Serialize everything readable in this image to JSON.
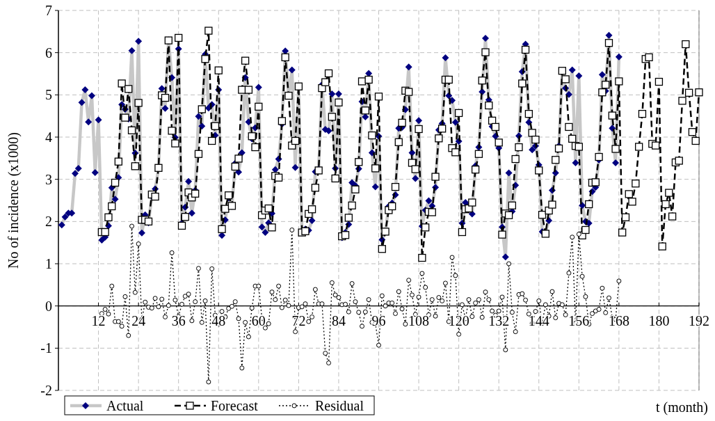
{
  "chart_data": {
    "type": "line",
    "ylabel": "No of incidence (x1000)",
    "xlabel": "t (month)",
    "xlim": [
      0,
      192
    ],
    "xticks": [
      12,
      24,
      36,
      48,
      60,
      72,
      84,
      96,
      108,
      120,
      132,
      144,
      156,
      168,
      180,
      192
    ],
    "ylim": [
      -2,
      7
    ],
    "yticks": [
      -2,
      -1,
      0,
      1,
      2,
      3,
      4,
      5,
      6,
      7
    ],
    "grid": true,
    "legend": "bottom left",
    "x": [
      1,
      2,
      3,
      4,
      5,
      6,
      7,
      8,
      9,
      10,
      11,
      12,
      13,
      14,
      15,
      16,
      17,
      18,
      19,
      20,
      21,
      22,
      23,
      24,
      25,
      26,
      27,
      28,
      29,
      30,
      31,
      32,
      33,
      34,
      35,
      36,
      37,
      38,
      39,
      40,
      41,
      42,
      43,
      44,
      45,
      46,
      47,
      48,
      49,
      50,
      51,
      52,
      53,
      54,
      55,
      56,
      57,
      58,
      59,
      60,
      61,
      62,
      63,
      64,
      65,
      66,
      67,
      68,
      69,
      70,
      71,
      72,
      73,
      74,
      75,
      76,
      77,
      78,
      79,
      80,
      81,
      82,
      83,
      84,
      85,
      86,
      87,
      88,
      89,
      90,
      91,
      92,
      93,
      94,
      95,
      96,
      97,
      98,
      99,
      100,
      101,
      102,
      103,
      104,
      105,
      106,
      107,
      108,
      109,
      110,
      111,
      112,
      113,
      114,
      115,
      116,
      117,
      118,
      119,
      120,
      121,
      122,
      123,
      124,
      125,
      126,
      127,
      128,
      129,
      130,
      131,
      132,
      133,
      134,
      135,
      136,
      137,
      138,
      139,
      140,
      141,
      142,
      143,
      144,
      145,
      146,
      147,
      148,
      149,
      150,
      151,
      152,
      153,
      154,
      155,
      156,
      157,
      158,
      159,
      160,
      161,
      162,
      163,
      164,
      165,
      166,
      167,
      168,
      169,
      170,
      171,
      172,
      173,
      174,
      175,
      176,
      177,
      178,
      179,
      180,
      181,
      182,
      183,
      184,
      185,
      186,
      187,
      188,
      189,
      190,
      191,
      192
    ],
    "series": [
      {
        "name": "Actual",
        "color": "#000080",
        "marker": "diamond",
        "line_style": "solid",
        "values": [
          1.92,
          2.11,
          2.2,
          2.2,
          3.14,
          3.26,
          4.82,
          5.12,
          4.36,
          4.98,
          3.16,
          4.41,
          1.56,
          1.63,
          1.9,
          2.8,
          2.53,
          3.04,
          4.77,
          4.66,
          4.43,
          6.05,
          3.62,
          6.27,
          1.73,
          2.16,
          1.97,
          2.6,
          2.77,
          3.25,
          5.15,
          4.68,
          6.3,
          5.41,
          3.99,
          6.09,
          1.96,
          2.34,
          2.95,
          2.2,
          2.74,
          4.49,
          4.26,
          5.96,
          4.69,
          4.77,
          4.04,
          5.12,
          1.67,
          2.04,
          2.56,
          2.36,
          3.38,
          3.17,
          3.63,
          5.41,
          4.36,
          3.96,
          4.22,
          5.18,
          1.87,
          1.74,
          1.97,
          2.19,
          3.23,
          3.48,
          4.31,
          6.04,
          4.99,
          5.59,
          3.28,
          5.19,
          1.73,
          1.82,
          1.79,
          2.02,
          3.18,
          3.24,
          5.24,
          4.18,
          4.15,
          5.02,
          3.26,
          5.02,
          1.62,
          1.74,
          1.93,
          2.92,
          2.85,
          3.25,
          4.84,
          4.48,
          5.51,
          3.63,
          2.82,
          4.02,
          1.57,
          1.76,
          2.36,
          2.44,
          2.63,
          4.21,
          4.23,
          4.65,
          5.66,
          3.63,
          3.02,
          4.39,
          1.89,
          2.27,
          2.49,
          2.37,
          2.81,
          4.17,
          4.32,
          5.88,
          4.98,
          4.87,
          4.35,
          3.9,
          1.96,
          2.45,
          2.38,
          2.18,
          3.32,
          3.76,
          5.07,
          6.34,
          4.88,
          4.25,
          4.02,
          3.74,
          1.87,
          1.16,
          3.15,
          2.24,
          2.86,
          4.03,
          5.55,
          6.2,
          4.35,
          3.7,
          3.79,
          3.34,
          1.76,
          1.74,
          2.02,
          2.74,
          3.15,
          3.79,
          5.55,
          5.16,
          5.01,
          5.59,
          3.39,
          5.45,
          2.38,
          2.0,
          1.96,
          2.71,
          2.81,
          3.46,
          5.48,
          5.09,
          6.41,
          4.21,
          3.39,
          5.9,
          null,
          null,
          null,
          null,
          null,
          null,
          null,
          null,
          null,
          null,
          null,
          null,
          null,
          null,
          null,
          null,
          null,
          null,
          null,
          null,
          null,
          null,
          null,
          null
        ]
      },
      {
        "name": "Forecast",
        "color": "#000000",
        "marker": "square",
        "line_style": "dashed",
        "values": [
          null,
          null,
          null,
          null,
          null,
          null,
          null,
          null,
          null,
          null,
          null,
          null,
          1.75,
          1.75,
          2.1,
          2.36,
          2.92,
          3.42,
          5.27,
          4.46,
          5.14,
          4.16,
          3.31,
          4.81,
          2.04,
          2.04,
          2.0,
          2.64,
          2.59,
          3.27,
          4.99,
          4.93,
          6.29,
          4.15,
          3.85,
          6.35,
          1.9,
          2.11,
          2.69,
          2.57,
          2.66,
          3.6,
          4.66,
          5.85,
          6.52,
          3.91,
          4.26,
          5.58,
          1.82,
          2.3,
          2.62,
          2.37,
          3.3,
          3.49,
          5.12,
          5.81,
          5.12,
          4.02,
          3.76,
          4.72,
          2.15,
          2.26,
          2.31,
          1.86,
          3.08,
          3.04,
          4.38,
          5.89,
          4.98,
          3.8,
          3.91,
          5.2,
          1.74,
          1.77,
          2.18,
          2.29,
          2.8,
          3.21,
          5.16,
          5.3,
          5.51,
          4.48,
          3.02,
          4.82,
          1.65,
          1.68,
          2.09,
          2.38,
          2.76,
          3.41,
          5.32,
          4.63,
          5.36,
          4.04,
          3.26,
          4.96,
          1.35,
          1.76,
          2.27,
          2.36,
          2.82,
          3.88,
          4.34,
          5.1,
          5.07,
          3.39,
          3.24,
          4.19,
          1.14,
          1.86,
          2.23,
          2.22,
          3.06,
          3.97,
          4.2,
          5.36,
          5.36,
          3.74,
          3.64,
          4.57,
          1.75,
          2.29,
          2.31,
          2.45,
          3.23,
          3.6,
          5.34,
          6.01,
          4.75,
          4.39,
          4.24,
          3.87,
          1.69,
          2.19,
          2.15,
          2.38,
          3.48,
          3.76,
          5.27,
          6.07,
          4.55,
          4.1,
          3.94,
          3.21,
          2.16,
          1.71,
          2.26,
          2.4,
          3.46,
          3.73,
          5.57,
          5.37,
          4.24,
          3.96,
          3.79,
          3.77,
          1.67,
          1.8,
          2.41,
          2.92,
          2.93,
          3.53,
          5.06,
          5.24,
          6.23,
          4.51,
          3.72,
          5.32,
          1.74,
          2.1,
          2.65,
          2.47,
          2.9,
          3.77,
          4.55,
          5.85,
          5.89,
          3.84,
          3.8,
          5.31,
          1.41,
          2.41,
          2.68,
          2.12,
          3.4,
          3.44,
          4.86,
          6.2,
          5.05,
          4.12,
          3.91,
          5.06
        ]
      },
      {
        "name": "Residual",
        "color": "#000000",
        "marker": "circle",
        "line_style": "dotted",
        "values": [
          null,
          null,
          null,
          null,
          null,
          null,
          null,
          null,
          null,
          null,
          null,
          null,
          -0.18,
          -0.08,
          -0.19,
          0.47,
          -0.37,
          -0.37,
          -0.48,
          0.22,
          -0.7,
          1.89,
          0.32,
          1.47,
          -0.32,
          0.09,
          -0.03,
          -0.05,
          0.18,
          -0.02,
          0.16,
          -0.26,
          0.01,
          1.26,
          0.14,
          -0.25,
          0.04,
          0.23,
          0.28,
          -0.35,
          0.1,
          0.89,
          -0.39,
          0.12,
          -1.8,
          0.88,
          -0.22,
          -0.43,
          -0.13,
          -0.26,
          -0.06,
          -0.01,
          0.1,
          -0.3,
          -1.47,
          -0.39,
          -0.73,
          -0.05,
          0.47,
          0.47,
          -0.29,
          -0.52,
          -0.42,
          0.33,
          0.15,
          0.47,
          -0.04,
          0.14,
          0.01,
          1.8,
          -0.61,
          -0.04,
          -0.02,
          0.05,
          -0.37,
          -0.26,
          0.39,
          0.05,
          0.05,
          -1.12,
          -1.35,
          0.55,
          0.26,
          0.2,
          0.03,
          0.04,
          -0.14,
          0.53,
          0.1,
          -0.15,
          -0.48,
          -0.14,
          0.15,
          -0.39,
          -0.42,
          -0.93,
          0.24,
          0.0,
          0.07,
          0.07,
          -0.18,
          0.34,
          -0.07,
          -0.43,
          0.61,
          0.26,
          -0.2,
          0.21,
          0.77,
          0.44,
          -0.21,
          0.15,
          -0.24,
          0.2,
          0.12,
          0.54,
          -0.37,
          1.15,
          0.72,
          -0.67,
          0.03,
          -0.3,
          0.15,
          -0.25,
          0.07,
          0.15,
          -0.27,
          0.33,
          0.15,
          -0.12,
          -0.22,
          -0.12,
          0.21,
          -1.04,
          1.0,
          -0.15,
          -0.61,
          0.27,
          0.29,
          0.14,
          -0.19,
          -0.41,
          -0.13,
          0.12,
          -0.41,
          0.03,
          -0.24,
          0.34,
          -0.28,
          0.06,
          0.03,
          -0.21,
          0.78,
          1.63,
          -0.41,
          1.7,
          0.7,
          0.22,
          -0.43,
          -0.18,
          -0.12,
          -0.08,
          0.42,
          -0.16,
          0.19,
          -0.27,
          -0.32,
          0.59,
          null,
          null,
          null,
          null,
          null,
          null,
          null,
          null,
          null,
          null,
          null,
          null,
          null,
          null,
          null,
          null,
          null,
          null,
          null,
          null,
          null,
          null,
          null,
          null
        ]
      }
    ]
  }
}
